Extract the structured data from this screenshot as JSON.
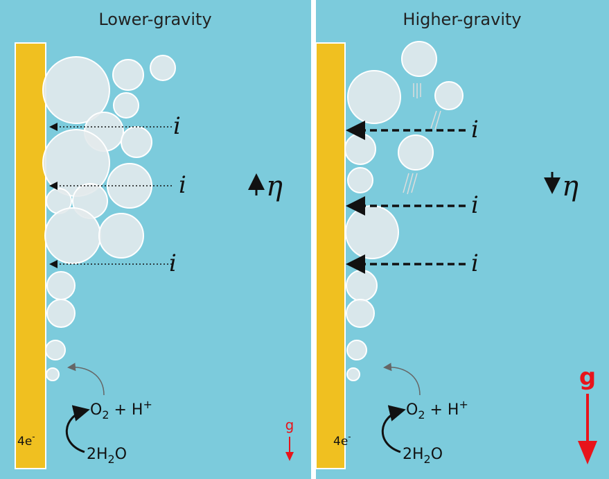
{
  "panels": [
    {
      "title": "Lower-gravity",
      "currents": [
        "i",
        "i",
        "i"
      ],
      "overpotential": "η",
      "electrons": [
        "4e",
        "-"
      ],
      "product": [
        "O",
        "2",
        " + H",
        "+"
      ],
      "reactant": [
        "2H",
        "2",
        "O"
      ],
      "gravity": "g"
    },
    {
      "title": "Higher-gravity",
      "currents": [
        "i",
        "i",
        "i"
      ],
      "overpotential": "η",
      "electrons": [
        "4e",
        "-"
      ],
      "product": [
        "O",
        "2",
        " + H",
        "+"
      ],
      "reactant": [
        "2H",
        "2",
        "O"
      ],
      "gravity": "g"
    }
  ]
}
